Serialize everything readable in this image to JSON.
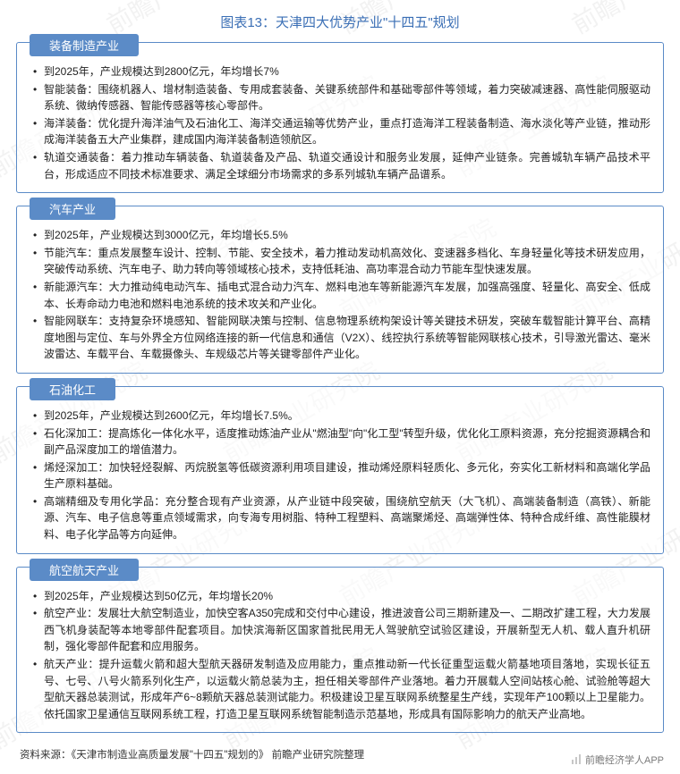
{
  "title": "图表13：天津四大优势产业\"十四五\"规划",
  "watermark_text": "前瞻产业研究院",
  "colors": {
    "accent": "#5b8bc7",
    "title": "#3b6fb5",
    "text": "#222222",
    "bg": "#ffffff"
  },
  "sections": [
    {
      "name": "装备制造产业",
      "items": [
        "到2025年，产业规模达到2800亿元，年均增长7%",
        "智能装备：围绕机器人、增材制造装备、专用成套装备、关键系统部件和基础零部件等领域，着力突破减速器、高性能伺服驱动系统、微纳传感器、智能传感器等核心零部件。",
        "海洋装备：优化提升海洋油气及石油化工、海洋交通运输等优势产业，重点打造海洋工程装备制造、海水淡化等产业链，推动形成海洋装备五大产业集群，建成国内海洋装备制造领航区。",
        "轨道交通装备：着力推动车辆装备、轨道装备及产品、轨道交通设计和服务业发展，延伸产业链条。完善城轨车辆产品技术平台，形成适应不同技术标准要求、满足全球细分市场需求的多系列城轨车辆产品谱系。"
      ]
    },
    {
      "name": "汽车产业",
      "items": [
        "到2025年，产业规模达到3000亿元，年均增长5.5%",
        "节能汽车：重点发展整车设计、控制、节能、安全技术，着力推动发动机高效化、变速器多档化、车身轻量化等技术研发应用，突破传动系统、汽车电子、助力转向等领域核心技术，支持低耗油、高功率混合动力节能车型快速发展。",
        "新能源汽车：大力推动纯电动汽车、插电式混合动力汽车、燃料电池车等新能源汽车发展，加强高强度、轻量化、高安全、低成本、长寿命动力电池和燃料电池系统的技术攻关和产业化。",
        "智能网联车：支持复杂环境感知、智能网联决策与控制、信息物理系统构架设计等关键技术研发，突破车载智能计算平台、高精度地图与定位、车与外界全方位网络连接的新一代信息和通信（V2X）、线控执行系统等智能网联核心技术，引导激光雷达、毫米波雷达、车载平台、车载摄像头、车规级芯片等关键零部件产业化。"
      ]
    },
    {
      "name": "石油化工",
      "items": [
        "到2025年，产业规模达到2600亿元，年均增长7.5%。",
        "石化深加工：提高炼化一体化水平，适度推动炼油产业从\"燃油型\"向\"化工型\"转型升级，优化化工原料资源，充分挖掘资源耦合和副产品深度加工的增值潜力。",
        "烯烃深加工：加快轻烃裂解、丙烷脱氢等低碳资源利用项目建设，推动烯烃原料轻质化、多元化，夯实化工新材料和高端化学品生产原料基础。",
        "高端精细及专用化学品：充分整合现有产业资源，从产业链中段突破，围绕航空航天（大飞机）、高端装备制造（高铁）、新能源、汽车、电子信息等重点领域需求，向专海专用树脂、特种工程塑料、高端聚烯烃、高端弹性体、特种合成纤维、高性能膜材料、电子化学品等方向延伸。"
      ]
    },
    {
      "name": "航空航天产业",
      "items": [
        "到2025年，产业规模达到50亿元，年均增长20%",
        "航空产业：发展壮大航空制造业，加快空客A350完成和交付中心建设，推进波音公司三期新建及一、二期改扩建工程，大力发展西飞机身装配等本地零部件配套项目。加快滨海新区国家首批民用无人驾驶航空试验区建设，开展新型无人机、载人直升机研制，强化零部件配套和应用服务。",
        "航天产业：提升运载火箭和超大型航天器研发制造及应用能力，重点推动新一代长征重型运载火箭基地项目落地，实现长征五号、七号、八号火箭系列化生产，以运载火箭总装为主，担任相关零部件产业落地。着力开展载人空间站核心舱、试验舱等超大型航天器总装测试，形成年产6~8颗航天器总装测试能力。积极建设卫星互联网系统整星生产线，实现年产100颗以上卫星能力。依托国家卫星通信互联网系统工程，打造卫星互联网系统智能制造示范基地，形成具有国际影响力的航天产业高地。"
      ]
    }
  ],
  "source": "资料来源：《天津市制造业高质量发展\"十四五\"规划的》 前瞻产业研究院整理",
  "footer_brand": "前瞻经济学人APP"
}
